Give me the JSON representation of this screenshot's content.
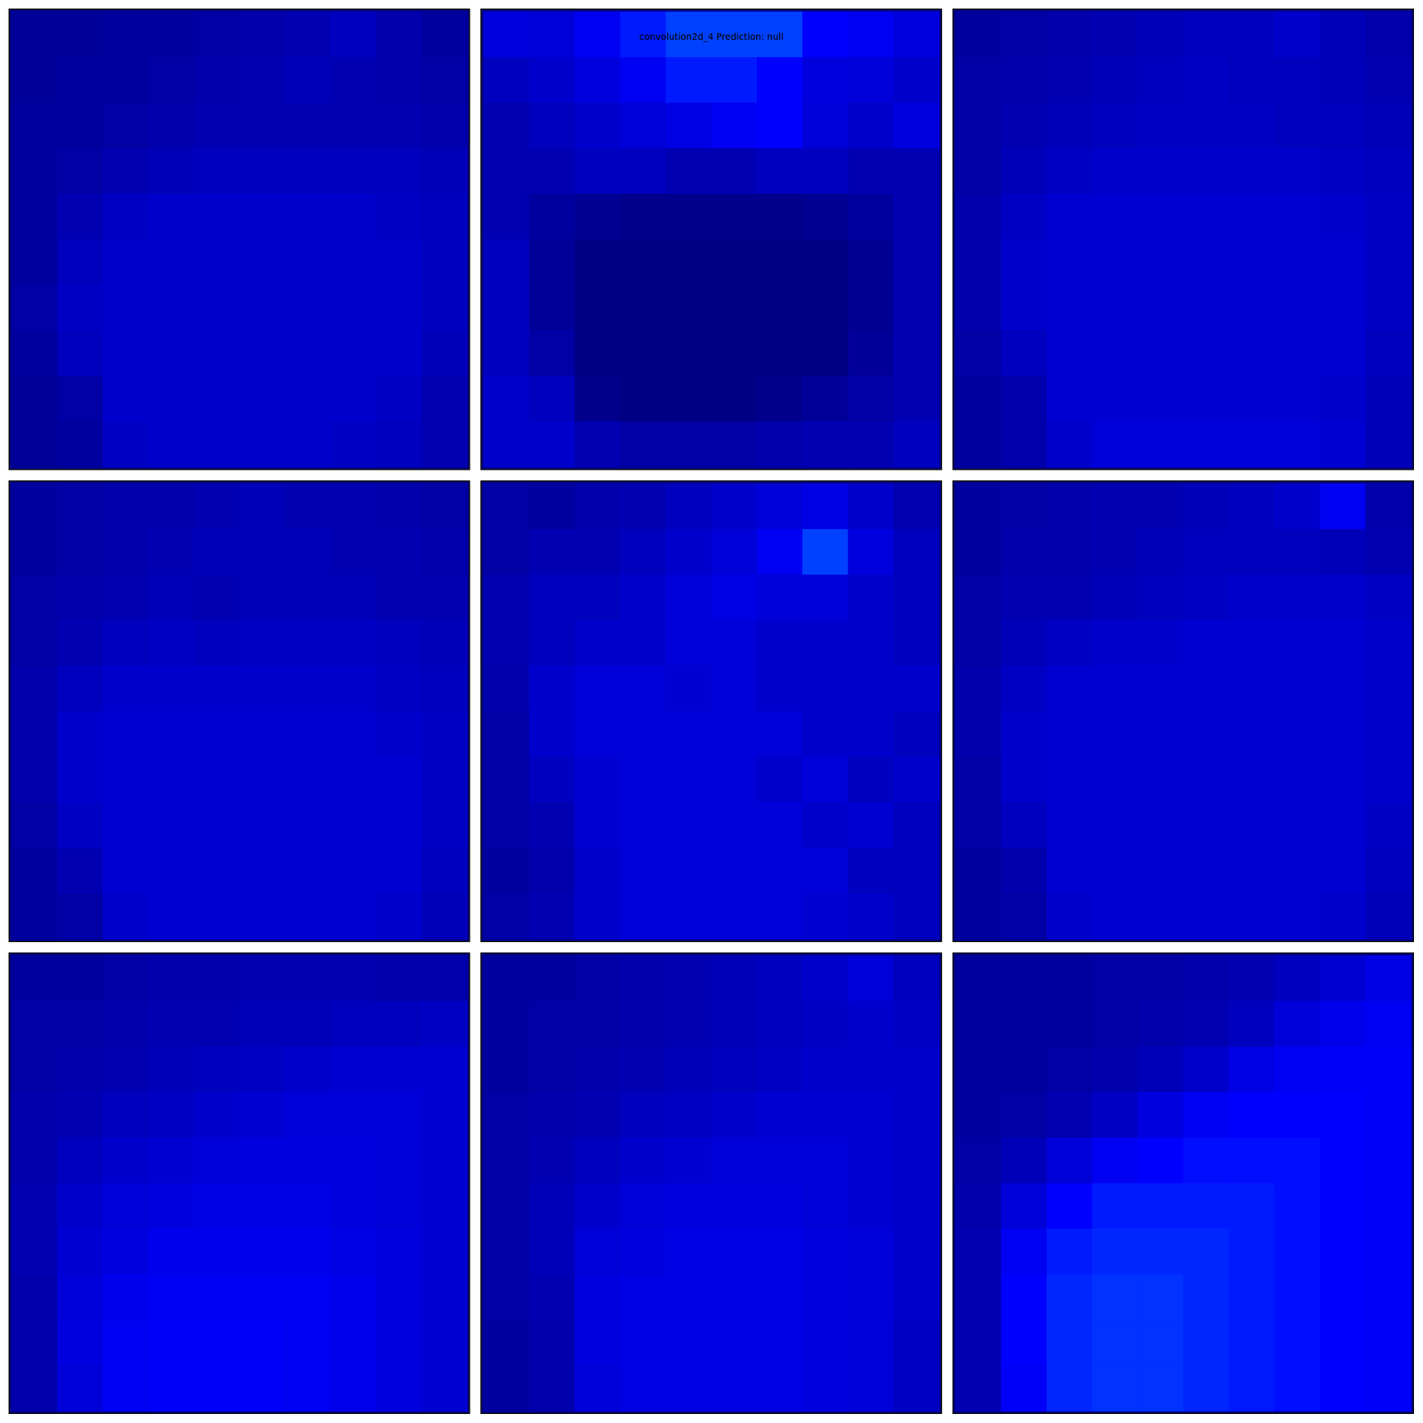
{
  "chart_data": {
    "type": "heatmap",
    "title": "convolution2d_4 Prediction: null",
    "value_range": [
      0,
      1
    ],
    "tick_labels": false,
    "panels": [
      {
        "cells": [
          [
            0.04,
            0.04,
            0.05,
            0.05,
            0.06,
            0.07,
            0.08,
            0.1,
            0.07,
            0.05
          ],
          [
            0.04,
            0.05,
            0.05,
            0.06,
            0.07,
            0.08,
            0.09,
            0.08,
            0.07,
            0.06
          ],
          [
            0.05,
            0.05,
            0.06,
            0.07,
            0.08,
            0.08,
            0.08,
            0.08,
            0.08,
            0.07
          ],
          [
            0.05,
            0.06,
            0.08,
            0.09,
            0.1,
            0.1,
            0.1,
            0.1,
            0.1,
            0.09
          ],
          [
            0.05,
            0.08,
            0.11,
            0.12,
            0.12,
            0.12,
            0.12,
            0.12,
            0.11,
            0.1
          ],
          [
            0.05,
            0.1,
            0.12,
            0.12,
            0.12,
            0.12,
            0.12,
            0.12,
            0.12,
            0.1
          ],
          [
            0.06,
            0.11,
            0.12,
            0.12,
            0.12,
            0.12,
            0.12,
            0.12,
            0.12,
            0.1
          ],
          [
            0.05,
            0.1,
            0.12,
            0.12,
            0.12,
            0.12,
            0.12,
            0.12,
            0.12,
            0.09
          ],
          [
            0.04,
            0.06,
            0.12,
            0.12,
            0.12,
            0.12,
            0.12,
            0.12,
            0.11,
            0.08
          ],
          [
            0.04,
            0.05,
            0.11,
            0.12,
            0.12,
            0.12,
            0.12,
            0.11,
            0.1,
            0.08
          ]
        ]
      },
      {
        "cells": [
          [
            0.15,
            0.14,
            0.18,
            0.22,
            0.25,
            0.25,
            0.25,
            0.2,
            0.18,
            0.15
          ],
          [
            0.1,
            0.12,
            0.15,
            0.18,
            0.22,
            0.22,
            0.2,
            0.15,
            0.14,
            0.12
          ],
          [
            0.08,
            0.1,
            0.12,
            0.14,
            0.16,
            0.18,
            0.2,
            0.14,
            0.12,
            0.15
          ],
          [
            0.08,
            0.08,
            0.1,
            0.1,
            0.08,
            0.08,
            0.1,
            0.1,
            0.08,
            0.08
          ],
          [
            0.08,
            0.05,
            0.03,
            0.02,
            0.02,
            0.02,
            0.02,
            0.03,
            0.05,
            0.08
          ],
          [
            0.1,
            0.04,
            0.01,
            0.01,
            0.01,
            0.01,
            0.01,
            0.01,
            0.03,
            0.08
          ],
          [
            0.1,
            0.04,
            0.01,
            0.01,
            0.01,
            0.01,
            0.01,
            0.01,
            0.03,
            0.08
          ],
          [
            0.1,
            0.06,
            0.01,
            0.01,
            0.01,
            0.01,
            0.01,
            0.01,
            0.04,
            0.08
          ],
          [
            0.12,
            0.1,
            0.02,
            0.01,
            0.01,
            0.01,
            0.02,
            0.04,
            0.06,
            0.08
          ],
          [
            0.12,
            0.12,
            0.08,
            0.06,
            0.06,
            0.06,
            0.07,
            0.08,
            0.08,
            0.1
          ]
        ]
      },
      {
        "cells": [
          [
            0.05,
            0.06,
            0.07,
            0.08,
            0.09,
            0.1,
            0.1,
            0.12,
            0.09,
            0.07
          ],
          [
            0.06,
            0.07,
            0.08,
            0.09,
            0.1,
            0.11,
            0.1,
            0.1,
            0.09,
            0.08
          ],
          [
            0.06,
            0.08,
            0.09,
            0.1,
            0.11,
            0.11,
            0.11,
            0.1,
            0.1,
            0.09
          ],
          [
            0.06,
            0.09,
            0.11,
            0.12,
            0.12,
            0.12,
            0.12,
            0.12,
            0.11,
            0.1
          ],
          [
            0.07,
            0.11,
            0.13,
            0.13,
            0.13,
            0.13,
            0.13,
            0.13,
            0.12,
            0.11
          ],
          [
            0.07,
            0.12,
            0.13,
            0.13,
            0.13,
            0.13,
            0.13,
            0.13,
            0.13,
            0.11
          ],
          [
            0.07,
            0.12,
            0.13,
            0.13,
            0.13,
            0.13,
            0.13,
            0.13,
            0.13,
            0.11
          ],
          [
            0.06,
            0.1,
            0.13,
            0.13,
            0.13,
            0.13,
            0.13,
            0.13,
            0.13,
            0.1
          ],
          [
            0.05,
            0.07,
            0.13,
            0.13,
            0.13,
            0.13,
            0.13,
            0.13,
            0.12,
            0.09
          ],
          [
            0.05,
            0.07,
            0.12,
            0.14,
            0.14,
            0.14,
            0.14,
            0.14,
            0.13,
            0.09
          ]
        ]
      },
      {
        "cells": [
          [
            0.05,
            0.06,
            0.07,
            0.07,
            0.08,
            0.09,
            0.08,
            0.08,
            0.07,
            0.06
          ],
          [
            0.05,
            0.06,
            0.07,
            0.08,
            0.09,
            0.09,
            0.09,
            0.08,
            0.08,
            0.07
          ],
          [
            0.06,
            0.07,
            0.08,
            0.09,
            0.08,
            0.09,
            0.09,
            0.09,
            0.08,
            0.08
          ],
          [
            0.06,
            0.08,
            0.1,
            0.11,
            0.1,
            0.11,
            0.11,
            0.11,
            0.1,
            0.09
          ],
          [
            0.07,
            0.1,
            0.12,
            0.12,
            0.12,
            0.12,
            0.12,
            0.12,
            0.11,
            0.1
          ],
          [
            0.07,
            0.12,
            0.13,
            0.13,
            0.13,
            0.13,
            0.13,
            0.13,
            0.12,
            0.11
          ],
          [
            0.07,
            0.12,
            0.13,
            0.13,
            0.13,
            0.13,
            0.13,
            0.13,
            0.13,
            0.11
          ],
          [
            0.06,
            0.11,
            0.13,
            0.13,
            0.13,
            0.13,
            0.13,
            0.13,
            0.13,
            0.11
          ],
          [
            0.05,
            0.08,
            0.13,
            0.13,
            0.13,
            0.13,
            0.13,
            0.13,
            0.13,
            0.1
          ],
          [
            0.05,
            0.06,
            0.12,
            0.13,
            0.13,
            0.13,
            0.13,
            0.13,
            0.12,
            0.09
          ]
        ]
      },
      {
        "cells": [
          [
            0.06,
            0.05,
            0.07,
            0.08,
            0.1,
            0.12,
            0.14,
            0.16,
            0.12,
            0.08
          ],
          [
            0.06,
            0.08,
            0.08,
            0.1,
            0.12,
            0.14,
            0.18,
            0.25,
            0.15,
            0.1
          ],
          [
            0.08,
            0.1,
            0.1,
            0.12,
            0.14,
            0.16,
            0.14,
            0.14,
            0.12,
            0.1
          ],
          [
            0.08,
            0.1,
            0.12,
            0.12,
            0.14,
            0.14,
            0.12,
            0.12,
            0.12,
            0.1
          ],
          [
            0.07,
            0.12,
            0.14,
            0.14,
            0.13,
            0.14,
            0.12,
            0.12,
            0.12,
            0.12
          ],
          [
            0.06,
            0.12,
            0.14,
            0.14,
            0.14,
            0.14,
            0.14,
            0.12,
            0.12,
            0.1
          ],
          [
            0.06,
            0.1,
            0.13,
            0.14,
            0.14,
            0.14,
            0.12,
            0.14,
            0.1,
            0.12
          ],
          [
            0.06,
            0.08,
            0.13,
            0.14,
            0.14,
            0.14,
            0.14,
            0.12,
            0.13,
            0.1
          ],
          [
            0.05,
            0.07,
            0.12,
            0.14,
            0.14,
            0.14,
            0.14,
            0.14,
            0.1,
            0.1
          ],
          [
            0.06,
            0.08,
            0.12,
            0.14,
            0.14,
            0.14,
            0.14,
            0.13,
            0.12,
            0.1
          ]
        ]
      },
      {
        "cells": [
          [
            0.05,
            0.06,
            0.07,
            0.08,
            0.08,
            0.09,
            0.1,
            0.12,
            0.18,
            0.07
          ],
          [
            0.05,
            0.07,
            0.07,
            0.08,
            0.09,
            0.1,
            0.1,
            0.1,
            0.09,
            0.08
          ],
          [
            0.06,
            0.08,
            0.08,
            0.09,
            0.1,
            0.11,
            0.12,
            0.12,
            0.12,
            0.11
          ],
          [
            0.06,
            0.09,
            0.11,
            0.12,
            0.12,
            0.13,
            0.13,
            0.13,
            0.13,
            0.12
          ],
          [
            0.07,
            0.11,
            0.13,
            0.13,
            0.13,
            0.13,
            0.13,
            0.13,
            0.13,
            0.12
          ],
          [
            0.07,
            0.12,
            0.13,
            0.13,
            0.13,
            0.13,
            0.13,
            0.13,
            0.13,
            0.12
          ],
          [
            0.06,
            0.12,
            0.13,
            0.13,
            0.13,
            0.13,
            0.13,
            0.13,
            0.13,
            0.12
          ],
          [
            0.06,
            0.1,
            0.13,
            0.13,
            0.13,
            0.13,
            0.13,
            0.13,
            0.13,
            0.11
          ],
          [
            0.05,
            0.07,
            0.13,
            0.13,
            0.13,
            0.13,
            0.13,
            0.13,
            0.13,
            0.1
          ],
          [
            0.05,
            0.06,
            0.12,
            0.13,
            0.13,
            0.13,
            0.13,
            0.13,
            0.12,
            0.09
          ]
        ]
      },
      {
        "cells": [
          [
            0.05,
            0.05,
            0.06,
            0.07,
            0.07,
            0.08,
            0.08,
            0.08,
            0.07,
            0.07
          ],
          [
            0.06,
            0.06,
            0.07,
            0.08,
            0.08,
            0.09,
            0.09,
            0.1,
            0.1,
            0.11
          ],
          [
            0.06,
            0.07,
            0.08,
            0.09,
            0.1,
            0.11,
            0.12,
            0.13,
            0.13,
            0.13
          ],
          [
            0.07,
            0.08,
            0.1,
            0.11,
            0.12,
            0.13,
            0.14,
            0.14,
            0.14,
            0.13
          ],
          [
            0.07,
            0.1,
            0.12,
            0.13,
            0.14,
            0.15,
            0.15,
            0.15,
            0.14,
            0.13
          ],
          [
            0.08,
            0.12,
            0.14,
            0.15,
            0.16,
            0.16,
            0.16,
            0.15,
            0.14,
            0.13
          ],
          [
            0.08,
            0.13,
            0.15,
            0.17,
            0.17,
            0.17,
            0.17,
            0.16,
            0.15,
            0.13
          ],
          [
            0.07,
            0.14,
            0.17,
            0.18,
            0.18,
            0.18,
            0.18,
            0.17,
            0.15,
            0.13
          ],
          [
            0.07,
            0.15,
            0.18,
            0.19,
            0.19,
            0.19,
            0.18,
            0.17,
            0.15,
            0.13
          ],
          [
            0.07,
            0.14,
            0.18,
            0.19,
            0.19,
            0.19,
            0.18,
            0.17,
            0.15,
            0.13
          ]
        ]
      },
      {
        "cells": [
          [
            0.05,
            0.05,
            0.06,
            0.07,
            0.08,
            0.09,
            0.1,
            0.12,
            0.14,
            0.1
          ],
          [
            0.05,
            0.06,
            0.06,
            0.07,
            0.08,
            0.09,
            0.1,
            0.11,
            0.12,
            0.11
          ],
          [
            0.05,
            0.06,
            0.07,
            0.08,
            0.09,
            0.1,
            0.11,
            0.12,
            0.12,
            0.12
          ],
          [
            0.06,
            0.07,
            0.08,
            0.1,
            0.11,
            0.12,
            0.13,
            0.13,
            0.13,
            0.12
          ],
          [
            0.06,
            0.08,
            0.1,
            0.12,
            0.13,
            0.14,
            0.14,
            0.14,
            0.13,
            0.12
          ],
          [
            0.06,
            0.09,
            0.12,
            0.14,
            0.15,
            0.15,
            0.15,
            0.14,
            0.13,
            0.12
          ],
          [
            0.06,
            0.09,
            0.14,
            0.15,
            0.16,
            0.16,
            0.16,
            0.15,
            0.14,
            0.12
          ],
          [
            0.06,
            0.08,
            0.15,
            0.16,
            0.16,
            0.16,
            0.16,
            0.15,
            0.14,
            0.12
          ],
          [
            0.05,
            0.07,
            0.15,
            0.16,
            0.16,
            0.16,
            0.16,
            0.15,
            0.14,
            0.11
          ],
          [
            0.05,
            0.07,
            0.14,
            0.16,
            0.16,
            0.16,
            0.16,
            0.15,
            0.14,
            0.11
          ]
        ]
      },
      {
        "cells": [
          [
            0.05,
            0.05,
            0.05,
            0.06,
            0.06,
            0.07,
            0.08,
            0.1,
            0.13,
            0.16
          ],
          [
            0.05,
            0.05,
            0.05,
            0.06,
            0.07,
            0.08,
            0.1,
            0.14,
            0.17,
            0.18
          ],
          [
            0.05,
            0.05,
            0.06,
            0.07,
            0.09,
            0.12,
            0.16,
            0.18,
            0.19,
            0.19
          ],
          [
            0.05,
            0.06,
            0.08,
            0.11,
            0.15,
            0.18,
            0.2,
            0.2,
            0.2,
            0.19
          ],
          [
            0.06,
            0.09,
            0.14,
            0.18,
            0.2,
            0.21,
            0.21,
            0.21,
            0.2,
            0.19
          ],
          [
            0.07,
            0.14,
            0.2,
            0.22,
            0.22,
            0.22,
            0.22,
            0.21,
            0.2,
            0.19
          ],
          [
            0.08,
            0.18,
            0.22,
            0.23,
            0.23,
            0.23,
            0.22,
            0.21,
            0.2,
            0.19
          ],
          [
            0.08,
            0.2,
            0.23,
            0.24,
            0.24,
            0.23,
            0.22,
            0.21,
            0.2,
            0.19
          ],
          [
            0.08,
            0.2,
            0.23,
            0.24,
            0.24,
            0.23,
            0.22,
            0.21,
            0.2,
            0.19
          ],
          [
            0.08,
            0.19,
            0.23,
            0.24,
            0.24,
            0.23,
            0.22,
            0.21,
            0.2,
            0.19
          ]
        ]
      }
    ]
  }
}
